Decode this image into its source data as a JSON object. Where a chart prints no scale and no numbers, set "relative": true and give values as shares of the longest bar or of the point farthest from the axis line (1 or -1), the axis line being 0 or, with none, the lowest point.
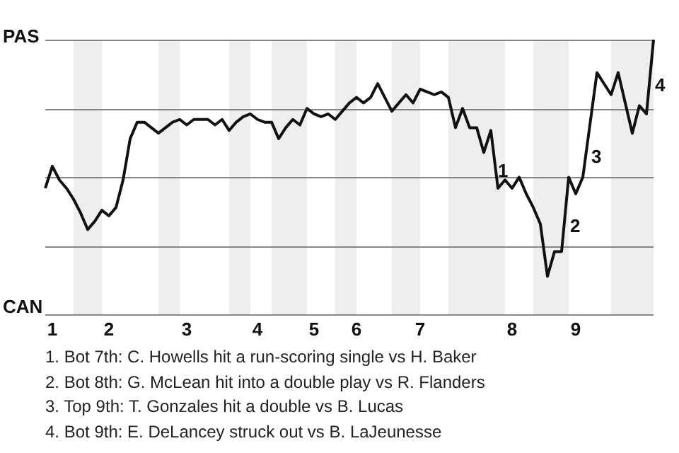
{
  "chart_data": {
    "type": "line",
    "relative": true,
    "categories": [
      null,
      "1",
      null,
      null,
      null,
      null,
      null,
      null,
      null,
      "2",
      null,
      null,
      null,
      null,
      null,
      null,
      null,
      null,
      null,
      null,
      "3",
      null,
      null,
      null,
      null,
      null,
      null,
      null,
      null,
      null,
      "4",
      null,
      null,
      null,
      null,
      null,
      null,
      null,
      "5",
      null,
      null,
      null,
      null,
      null,
      "6",
      null,
      null,
      null,
      null,
      null,
      null,
      null,
      null,
      "7",
      null,
      null,
      null,
      null,
      null,
      null,
      null,
      null,
      null,
      null,
      null,
      null,
      "8",
      null,
      null,
      null,
      null,
      null,
      null,
      null,
      null,
      "9",
      null,
      null,
      null,
      null,
      null,
      null,
      null,
      null,
      null,
      null,
      null
    ],
    "grid": "y",
    "legend": false,
    "marker": "none",
    "line_style": "solid",
    "series": [
      {
        "color": "#111111",
        "values": [
          0.46,
          0.54,
          0.49,
          0.46,
          0.42,
          0.37,
          0.31,
          0.34,
          0.38,
          0.36,
          0.39,
          0.49,
          0.64,
          0.7,
          0.7,
          0.68,
          0.66,
          0.68,
          0.7,
          0.71,
          0.69,
          0.71,
          0.71,
          0.71,
          0.69,
          0.71,
          0.67,
          0.7,
          0.72,
          0.73,
          0.71,
          0.7,
          0.7,
          0.64,
          0.68,
          0.71,
          0.69,
          0.75,
          0.73,
          0.72,
          0.73,
          0.71,
          0.74,
          0.77,
          0.79,
          0.77,
          0.79,
          0.84,
          0.79,
          0.74,
          0.77,
          0.8,
          0.77,
          0.82,
          0.81,
          0.8,
          0.81,
          0.79,
          0.68,
          0.75,
          0.68,
          0.68,
          0.59,
          0.67,
          0.46,
          0.49,
          0.46,
          0.5,
          0.44,
          0.39,
          0.33,
          0.14,
          0.23,
          0.23,
          0.5,
          0.44,
          0.5,
          0.69,
          0.88,
          0.84,
          0.8,
          0.88,
          0.77,
          0.66,
          0.76,
          0.73,
          1.0
        ]
      }
    ],
    "annotations": [
      "PAS",
      "CAN",
      "1",
      "2",
      "3",
      "4",
      "1. Bot 7th: C. Howells hit a run-scoring single vs H. Baker",
      "2. Bot 8th: G. McLean hit into a double play vs R. Flanders",
      "3. Top 9th: T. Gonzales hit a double vs B. Lucas",
      "4. Bot 9th: E. DeLancey struck out vs B. LaJeunesse"
    ]
  }
}
